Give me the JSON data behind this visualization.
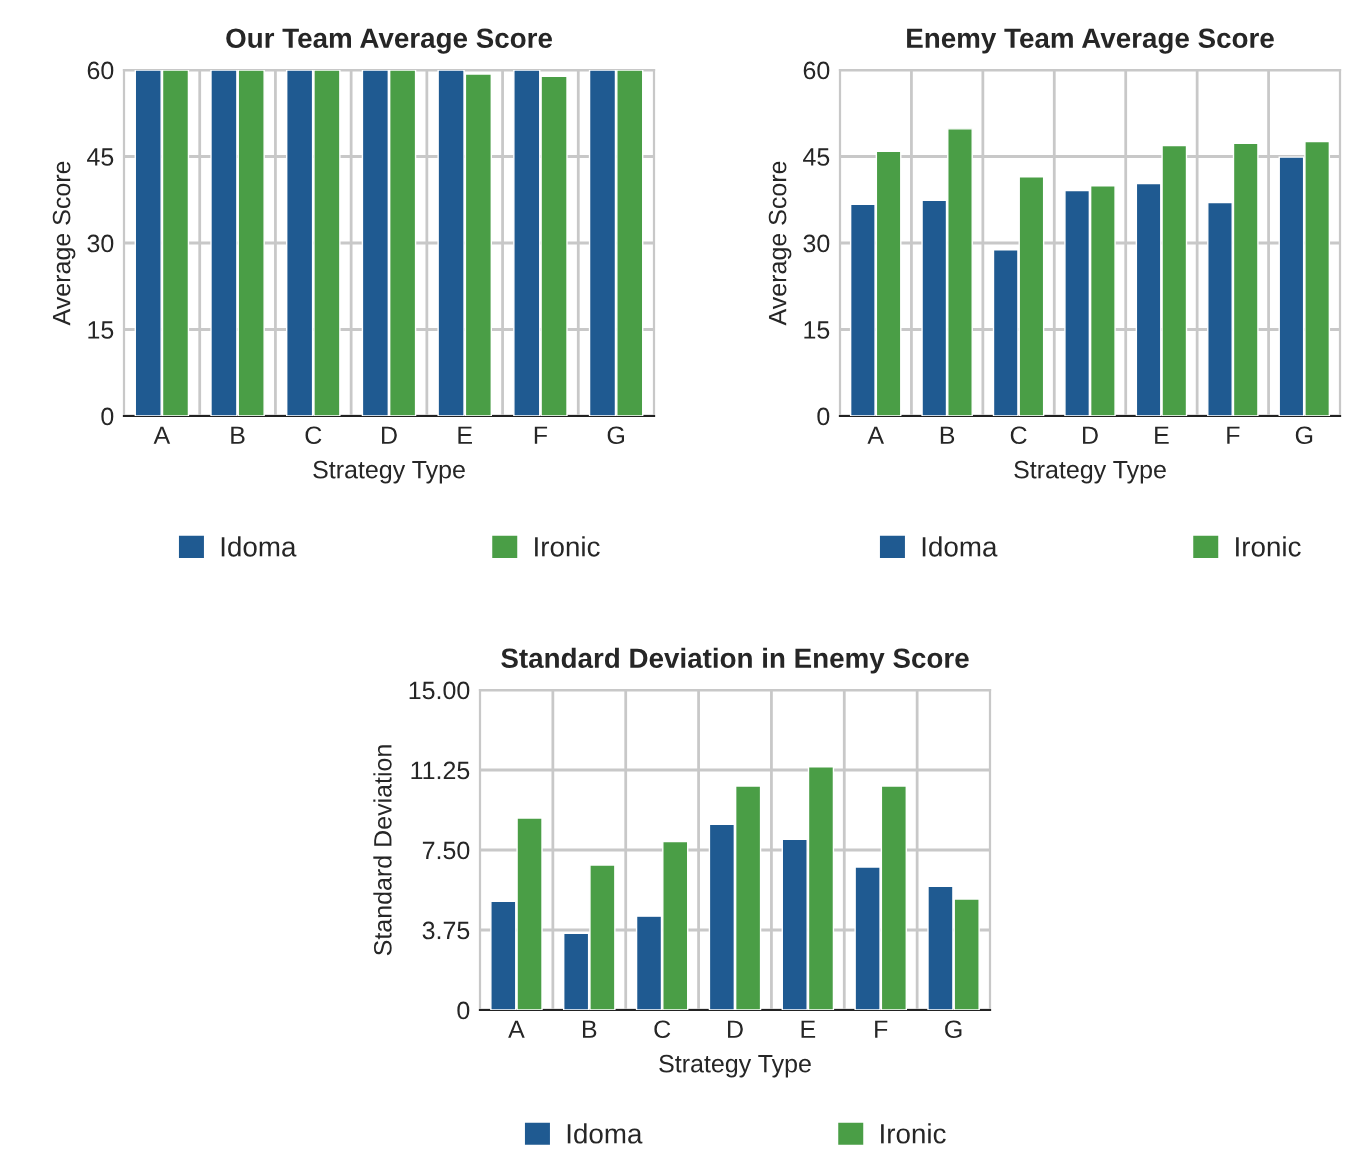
{
  "chart_data": [
    {
      "type": "bar",
      "title": "Our Team Average Score",
      "xlabel": "Strategy Type",
      "ylabel": "Average Score",
      "categories": [
        "A",
        "B",
        "C",
        "D",
        "E",
        "F",
        "G"
      ],
      "series": [
        {
          "name": "Idoma",
          "color": "#1f5a91",
          "values": [
            60,
            60,
            60,
            60,
            60,
            60,
            60
          ]
        },
        {
          "name": "Ironic",
          "color": "#4a9e46",
          "values": [
            60,
            60,
            60,
            60,
            59.3,
            58.9,
            60
          ]
        }
      ],
      "ylim": [
        0,
        60
      ],
      "yticks": [
        0,
        15,
        30,
        45,
        60
      ],
      "grid": true,
      "legend": "bottom"
    },
    {
      "type": "bar",
      "title": "Enemy Team Average Score",
      "xlabel": "Strategy Type",
      "ylabel": "Average Score",
      "categories": [
        "A",
        "B",
        "C",
        "D",
        "E",
        "F",
        "G"
      ],
      "series": [
        {
          "name": "Idoma",
          "color": "#1f5a91",
          "values": [
            36.7,
            37.4,
            28.8,
            39.1,
            40.3,
            37.0,
            44.9
          ]
        },
        {
          "name": "Ironic",
          "color": "#4a9e46",
          "values": [
            45.9,
            49.8,
            41.5,
            39.9,
            46.9,
            47.3,
            47.6
          ]
        }
      ],
      "ylim": [
        0,
        60
      ],
      "yticks": [
        0,
        15,
        30,
        45,
        60
      ],
      "grid": true,
      "legend": "bottom"
    },
    {
      "type": "bar",
      "title": "Standard Deviation in Enemy Score",
      "xlabel": "Strategy Type",
      "ylabel": "Standard Deviation",
      "categories": [
        "A",
        "B",
        "C",
        "D",
        "E",
        "F",
        "G"
      ],
      "series": [
        {
          "name": "Idoma",
          "color": "#1f5a91",
          "values": [
            5.1,
            3.6,
            4.4,
            8.7,
            8.0,
            6.7,
            5.8
          ]
        },
        {
          "name": "Ironic",
          "color": "#4a9e46",
          "values": [
            9.0,
            6.8,
            7.9,
            10.5,
            11.4,
            10.5,
            5.2
          ]
        }
      ],
      "ylim": [
        0,
        15
      ],
      "yticks": [
        0,
        3.75,
        {
          "value": 7.5,
          "label": "7.50"
        },
        11.25,
        {
          "value": 15,
          "label": "15.00"
        }
      ],
      "grid": true,
      "legend": "bottom"
    }
  ]
}
